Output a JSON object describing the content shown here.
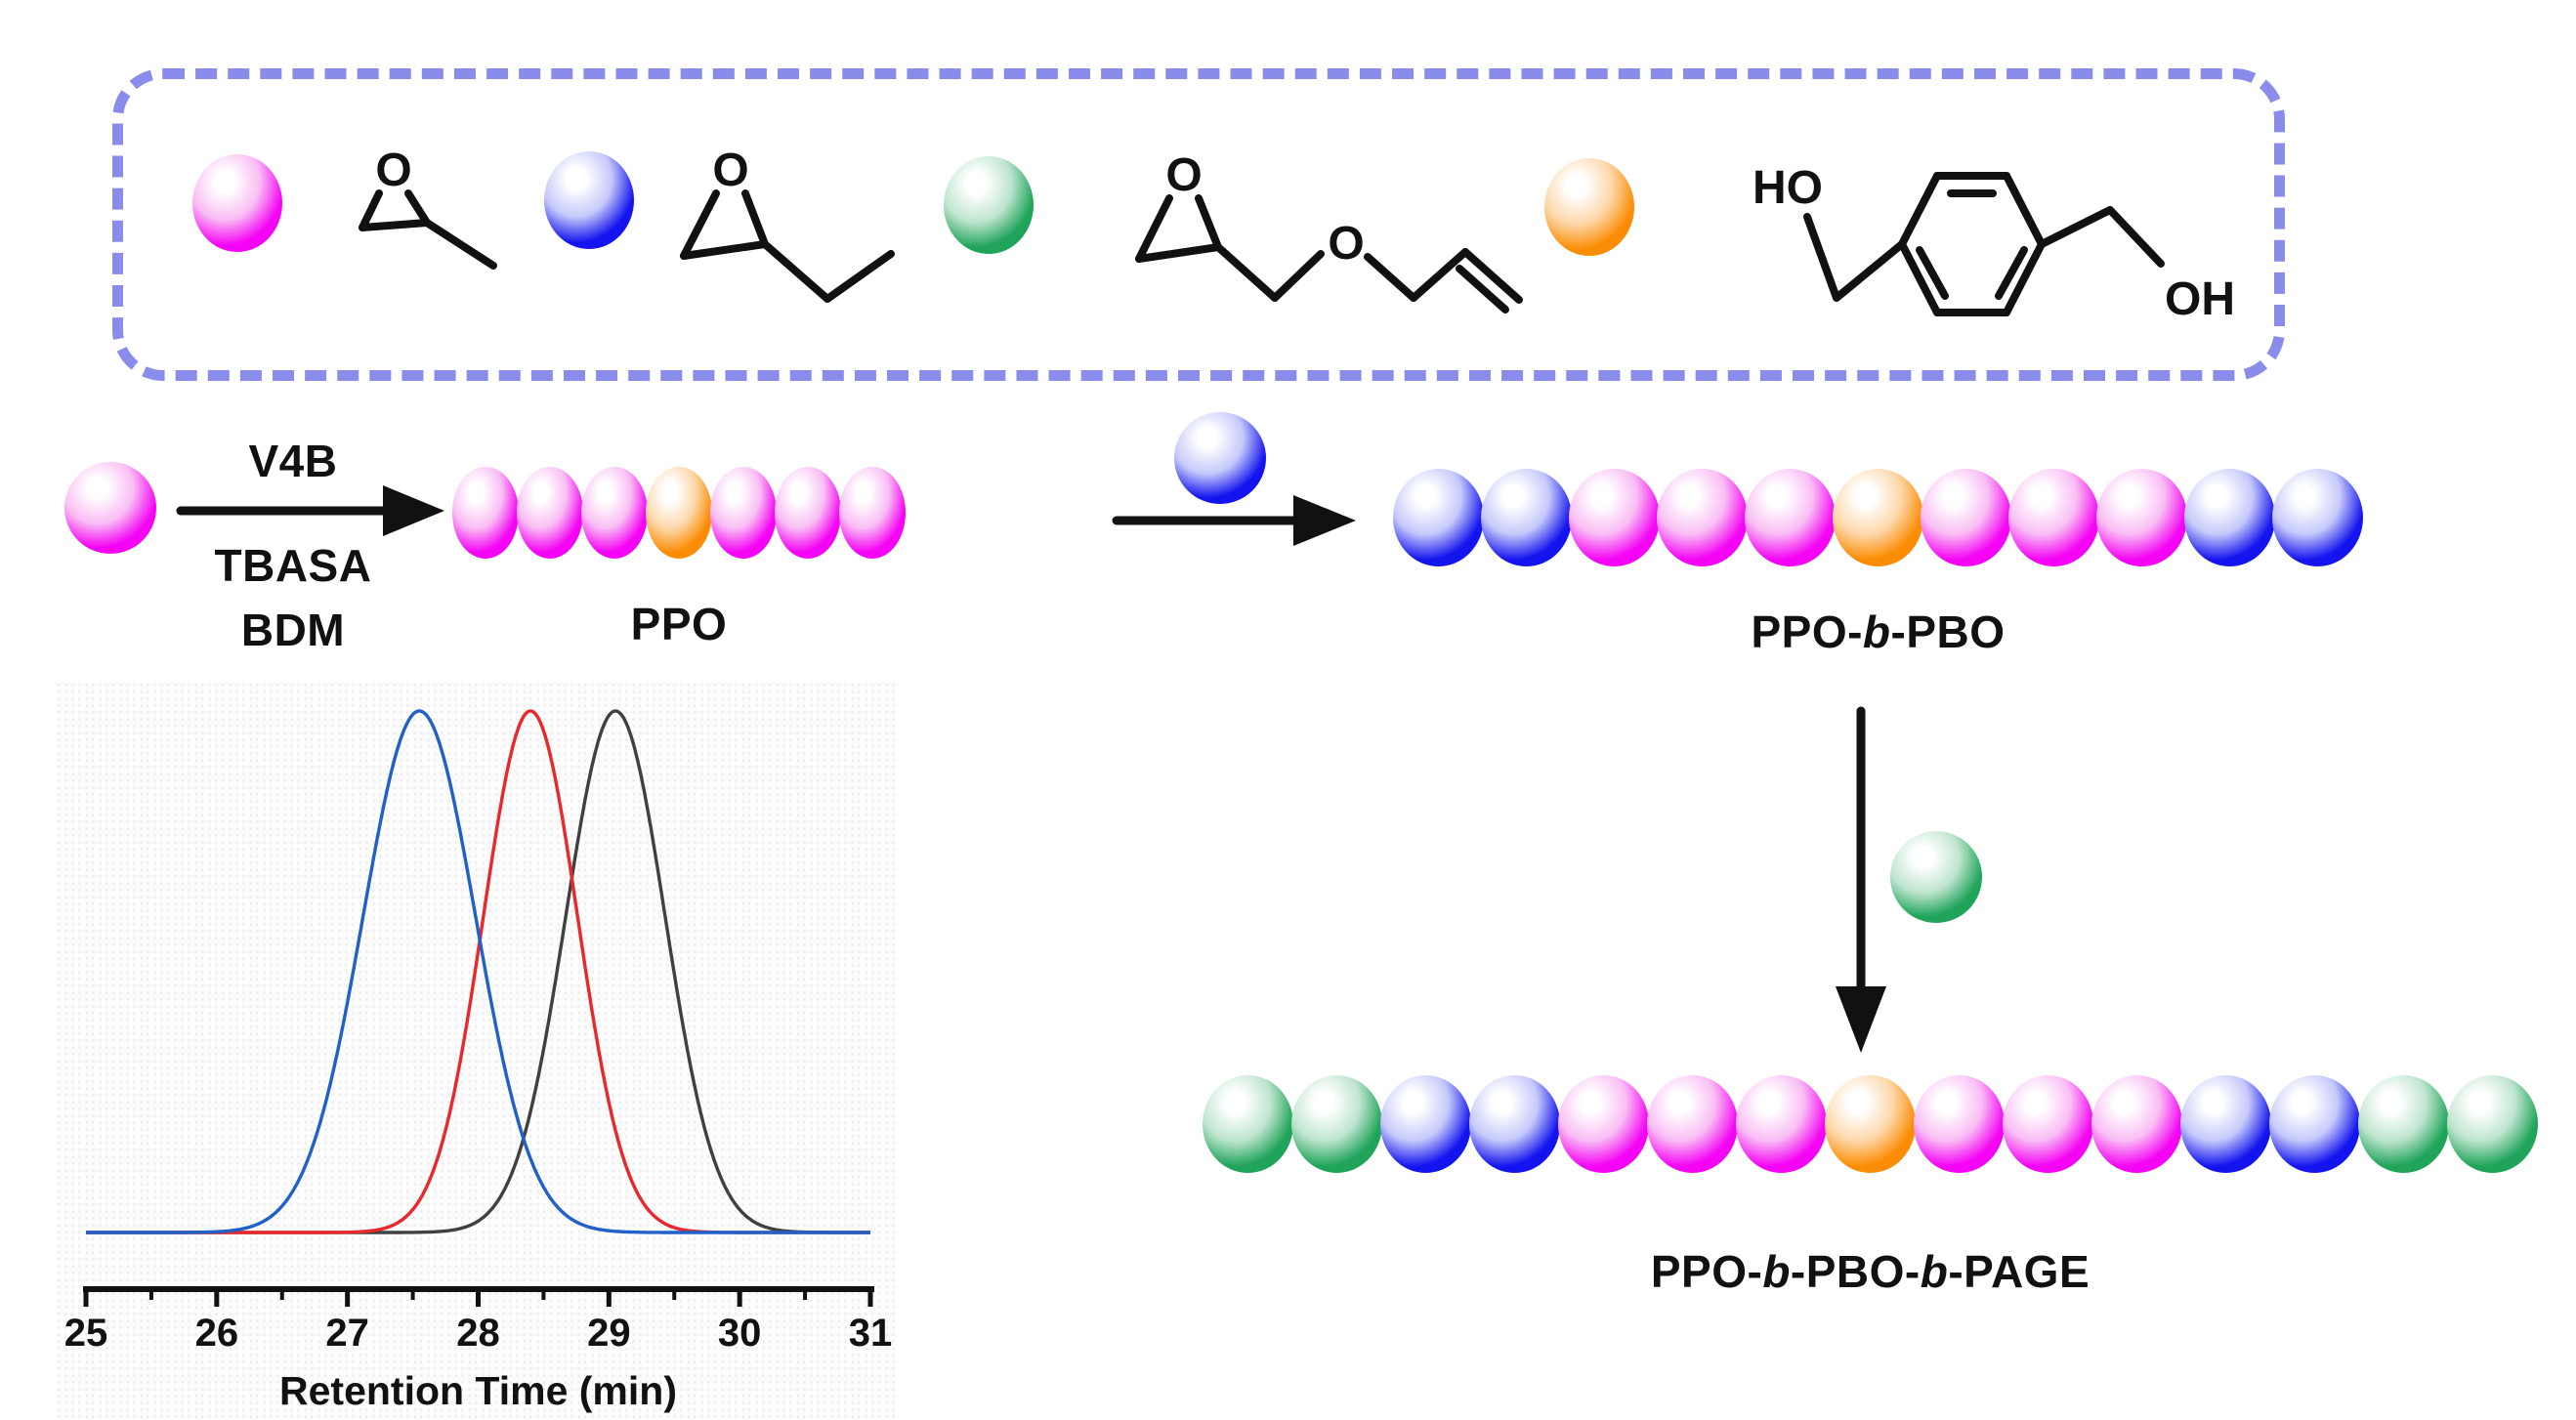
{
  "figure": {
    "legend_atoms": {
      "oxygen": "O",
      "ho": "HO",
      "oh": "OH"
    },
    "reaction": {
      "above_arrow": "V4B",
      "below_arrow_1": "TBASA",
      "below_arrow_2": "BDM"
    },
    "labels": {
      "ppo": "PPO",
      "pbo_parts": [
        "PPO-",
        "b",
        "-PBO"
      ],
      "page_parts": [
        "PPO-",
        "b",
        "-PBO-",
        "b",
        "-PAGE"
      ]
    },
    "chains": {
      "ppo": [
        "po",
        "po",
        "po",
        "bdm",
        "po",
        "po",
        "po"
      ],
      "pbo": [
        "bo",
        "bo",
        "po",
        "po",
        "po",
        "bdm",
        "po",
        "po",
        "po",
        "bo",
        "bo"
      ],
      "page": [
        "age",
        "age",
        "bo",
        "bo",
        "po",
        "po",
        "po",
        "bdm",
        "po",
        "po",
        "po",
        "bo",
        "bo",
        "age",
        "age"
      ]
    },
    "monomer_colors": {
      "po": {
        "rim": "#f403f4",
        "mid": "#f9bdf4"
      },
      "bo": {
        "rim": "#1414ef",
        "mid": "#c5c9fa"
      },
      "age": {
        "rim": "#1fa45a",
        "mid": "#bfe5cf"
      },
      "bdm": {
        "rim": "#fb8d06",
        "mid": "#fdd8ab"
      }
    },
    "box_border_color": "#8a8cec"
  },
  "chart_data": {
    "type": "line",
    "title": "",
    "xlabel": "Retention Time (min)",
    "ylabel": "",
    "xlim": [
      25,
      31
    ],
    "x_ticks": [
      25,
      26,
      27,
      28,
      29,
      30,
      31
    ],
    "minor_tick_step": 0.5,
    "grid": false,
    "legend": "none",
    "series": [
      {
        "name": "blue trace",
        "color": "#2060c8",
        "peak_x": 27.55,
        "sigma": 0.43,
        "peak_height": 1.0,
        "baseline": 0.0
      },
      {
        "name": "red trace",
        "color": "#e8282c",
        "peak_x": 28.4,
        "sigma": 0.36,
        "peak_height": 1.0,
        "baseline": 0.0
      },
      {
        "name": "black trace",
        "color": "#404040",
        "peak_x": 29.05,
        "sigma": 0.38,
        "peak_height": 1.0,
        "baseline": 0.0
      }
    ]
  }
}
